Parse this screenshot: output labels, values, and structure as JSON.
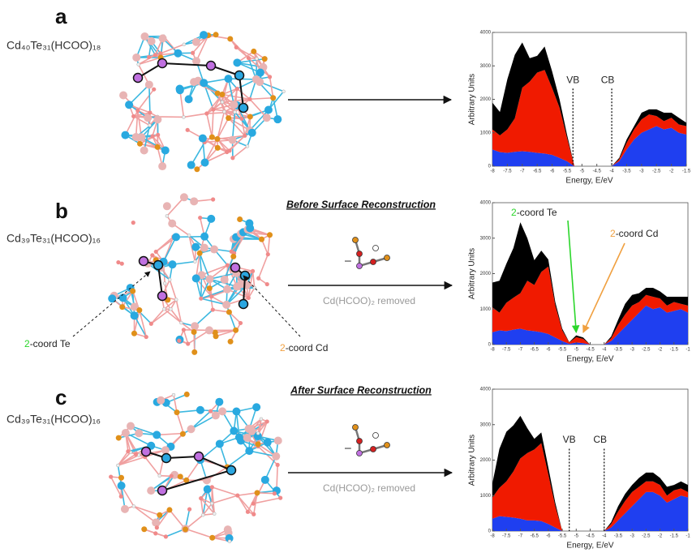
{
  "panels": [
    {
      "label": "a",
      "formula": "Cd₄₀Te₃₁(HCOO)₁₈"
    },
    {
      "label": "b",
      "formula": "Cd₃₉Te₃₁(HCOO)₁₆",
      "heading": "Before Surface Reconstruction",
      "minus": "–",
      "caption": "Cd(HCOO)₂ removed",
      "site_labels": [
        {
          "number": "2",
          "text": "-coord Te",
          "color": "#2bd62b"
        },
        {
          "number": "2",
          "text": "-coord Cd",
          "color": "#f0a040"
        }
      ]
    },
    {
      "label": "c",
      "formula": "Cd₃₉Te₃₁(HCOO)₁₆",
      "heading": "After Surface Reconstruction",
      "minus": "–",
      "caption": "Cd(HCOO)₂ removed"
    }
  ],
  "chart_data": [
    {
      "type": "area",
      "stacked": true,
      "xlabel": "Energy, E/eV",
      "ylabel": "Arbitrary Units",
      "x": [
        -8,
        -7.75,
        -7.5,
        -7.25,
        -7,
        -6.75,
        -6.5,
        -6.25,
        -6,
        -5.75,
        -5.5,
        -5.25,
        -5,
        -4.75,
        -4.5,
        -4.25,
        -4,
        -3.75,
        -3.5,
        -3.25,
        -3,
        -2.75,
        -2.5,
        -2.25,
        -2,
        -1.75,
        -1.5
      ],
      "series": [
        {
          "color": "#1f3ff0",
          "values": [
            500,
            420,
            400,
            430,
            450,
            430,
            400,
            380,
            340,
            250,
            150,
            0,
            null,
            null,
            null,
            null,
            0,
            150,
            500,
            800,
            1000,
            1100,
            1200,
            1100,
            1150,
            1000,
            950
          ]
        },
        {
          "color": "#f01a00",
          "values": [
            600,
            500,
            700,
            1000,
            1900,
            2100,
            2400,
            2500,
            2000,
            1500,
            700,
            0,
            null,
            null,
            null,
            null,
            0,
            60,
            200,
            300,
            400,
            450,
            300,
            250,
            300,
            250,
            250
          ]
        },
        {
          "color": "#000000",
          "values": [
            800,
            700,
            1500,
            1900,
            1350,
            700,
            500,
            700,
            500,
            250,
            100,
            0,
            null,
            null,
            null,
            null,
            0,
            40,
            100,
            100,
            200,
            150,
            200,
            250,
            150,
            200,
            100
          ]
        }
      ],
      "xlim": [
        -8,
        -1.5
      ],
      "ylim": [
        0,
        4000
      ],
      "xticks": [
        -8,
        -7.5,
        -7,
        -6.5,
        -6,
        -5.5,
        -5,
        -4.5,
        -4,
        -3.5,
        -3,
        -2.5,
        -2,
        -1.5
      ],
      "yticks": [
        0,
        1000,
        2000,
        3000,
        4000
      ],
      "vlines": [
        {
          "x": -5.3,
          "label": "VB"
        },
        {
          "x": -4,
          "label": "CB"
        }
      ]
    },
    {
      "type": "area",
      "stacked": true,
      "xlabel": "Energy, E/eV",
      "ylabel": "Arbitrary Units",
      "x": [
        -8,
        -7.75,
        -7.5,
        -7.25,
        -7,
        -6.75,
        -6.5,
        -6.25,
        -6,
        -5.75,
        -5.5,
        -5.25,
        -5,
        -4.75,
        -4.5,
        -4.25,
        -4,
        -3.75,
        -3.5,
        -3.25,
        -3,
        -2.75,
        -2.5,
        -2.25,
        -2,
        -1.75,
        -1.5,
        -1.25,
        -1
      ],
      "series": [
        {
          "color": "#1f3ff0",
          "values": [
            350,
            400,
            380,
            420,
            450,
            400,
            380,
            350,
            300,
            200,
            100,
            20,
            60,
            40,
            0,
            null,
            0,
            100,
            300,
            500,
            700,
            900,
            1100,
            1000,
            1050,
            900,
            950,
            1000,
            900
          ]
        },
        {
          "color": "#f01a00",
          "values": [
            700,
            500,
            800,
            900,
            1000,
            1400,
            1300,
            1700,
            1900,
            900,
            300,
            40,
            150,
            120,
            0,
            null,
            0,
            80,
            250,
            350,
            400,
            300,
            300,
            350,
            250,
            200,
            250,
            150,
            200
          ]
        },
        {
          "color": "#000000",
          "values": [
            700,
            900,
            1100,
            1400,
            2000,
            1200,
            700,
            600,
            200,
            100,
            50,
            10,
            50,
            40,
            0,
            null,
            0,
            50,
            150,
            300,
            300,
            250,
            200,
            250,
            200,
            250,
            150,
            200,
            250
          ]
        }
      ],
      "xlim": [
        -8,
        -1
      ],
      "ylim": [
        0,
        4000
      ],
      "xticks": [
        -8,
        -7.5,
        -7,
        -6.5,
        -6,
        -5.5,
        -5,
        -4.5,
        -4,
        -3.5,
        -3,
        -2.5,
        -2,
        -1.5,
        -1
      ],
      "yticks": [
        0,
        1000,
        2000,
        3000,
        4000
      ],
      "annotations": [
        {
          "number": "2",
          "text": "-coord Te",
          "x": -5,
          "color": "#2bd62b"
        },
        {
          "number": "2",
          "text": "-coord Cd",
          "x": -4.75,
          "color": "#f0a040"
        }
      ]
    },
    {
      "type": "area",
      "stacked": true,
      "xlabel": "Energy, E/eV",
      "ylabel": "Arbitrary Units",
      "x": [
        -8,
        -7.75,
        -7.5,
        -7.25,
        -7,
        -6.75,
        -6.5,
        -6.25,
        -6,
        -5.75,
        -5.5,
        -5.25,
        -5,
        -4.75,
        -4.5,
        -4.25,
        -4,
        -3.75,
        -3.5,
        -3.25,
        -3,
        -2.75,
        -2.5,
        -2.25,
        -2,
        -1.75,
        -1.5,
        -1.25,
        -1
      ],
      "series": [
        {
          "color": "#1f3ff0",
          "values": [
            350,
            420,
            400,
            380,
            350,
            300,
            300,
            280,
            200,
            100,
            0,
            null,
            null,
            null,
            null,
            null,
            0,
            100,
            300,
            500,
            700,
            900,
            1100,
            1100,
            1000,
            800,
            900,
            1000,
            950
          ]
        },
        {
          "color": "#f01a00",
          "values": [
            600,
            800,
            1000,
            1300,
            1700,
            1900,
            2000,
            2200,
            1400,
            600,
            0,
            null,
            null,
            null,
            null,
            null,
            0,
            100,
            250,
            350,
            400,
            350,
            300,
            300,
            300,
            200,
            250,
            200,
            150
          ]
        },
        {
          "color": "#000000",
          "values": [
            400,
            1100,
            1400,
            1300,
            1200,
            700,
            300,
            300,
            200,
            100,
            0,
            null,
            null,
            null,
            null,
            null,
            0,
            50,
            150,
            200,
            200,
            250,
            250,
            250,
            200,
            250,
            150,
            200,
            200
          ]
        }
      ],
      "xlim": [
        -8,
        -1
      ],
      "ylim": [
        0,
        4000
      ],
      "xticks": [
        -8,
        -7.5,
        -7,
        -6.5,
        -6,
        -5.5,
        -5,
        -4.5,
        -4,
        -3.5,
        -3,
        -2.5,
        -2,
        -1.5,
        -1
      ],
      "yticks": [
        0,
        1000,
        2000,
        3000,
        4000
      ],
      "vlines": [
        {
          "x": -5.25,
          "label": "VB"
        },
        {
          "x": -4,
          "label": "CB"
        }
      ]
    }
  ]
}
